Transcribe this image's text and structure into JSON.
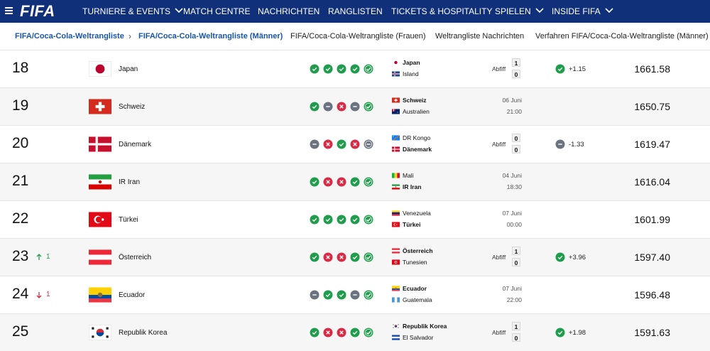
{
  "nav": {
    "logo": "FIFA",
    "items": [
      {
        "label": "TURNIERE & EVENTS",
        "dropdown": true
      },
      {
        "label": "MATCH CENTRE",
        "dropdown": false
      },
      {
        "label": "NACHRICHTEN",
        "dropdown": false
      },
      {
        "label": "RANGLISTEN",
        "dropdown": false
      },
      {
        "label": "TICKETS & HOSPITALITY",
        "dropdown": false
      },
      {
        "label": "SPIELEN",
        "dropdown": true
      },
      {
        "label": "INSIDE FIFA",
        "dropdown": true
      }
    ]
  },
  "breadcrumb": [
    "FIFA/Coca-Cola-Weltrangliste",
    "FIFA/Coca-Cola-Weltrangliste (Männer)"
  ],
  "tabs": [
    "FIFA/Coca-Cola-Weltrangliste (Frauen)",
    "Weltrangliste Nachrichten",
    "Verfahren FIFA/Coca-Cola-Weltrangliste (Männer)"
  ],
  "rows": [
    {
      "rank": "18",
      "team": "Japan",
      "form": [
        "W",
        "W",
        "W",
        "W",
        "W"
      ],
      "match": {
        "home": "Japan",
        "away": "Island",
        "highlight": "home",
        "status": "Abfiff",
        "score": [
          "1",
          "0"
        ]
      },
      "change": "+1.15",
      "points": "1661.58"
    },
    {
      "rank": "19",
      "team": "Schweiz",
      "form": [
        "W",
        "D",
        "L",
        "D",
        "W"
      ],
      "match": {
        "home": "Schweiz",
        "away": "Australien",
        "highlight": "home",
        "date": "06 Juni",
        "time": "21:00"
      },
      "points": "1650.75"
    },
    {
      "rank": "20",
      "team": "Dänemark",
      "form": [
        "D",
        "L",
        "W",
        "L",
        "D"
      ],
      "match": {
        "home": "DR Kongo",
        "away": "Dänemark",
        "highlight": "away",
        "status": "Abfiff",
        "score": [
          "0",
          "0"
        ]
      },
      "change": "-1.33",
      "points": "1619.47"
    },
    {
      "rank": "21",
      "team": "IR Iran",
      "form": [
        "W",
        "L",
        "L",
        "W",
        "W"
      ],
      "match": {
        "home": "Mali",
        "away": "IR Iran",
        "highlight": "away",
        "date": "04 Juni",
        "time": "18:30"
      },
      "points": "1616.04"
    },
    {
      "rank": "22",
      "team": "Türkei",
      "form": [
        "W",
        "W",
        "W",
        "W",
        "W"
      ],
      "match": {
        "home": "Venezuela",
        "away": "Türkei",
        "highlight": "away",
        "date": "07 Juni",
        "time": "00:00"
      },
      "points": "1601.99"
    },
    {
      "rank": "23",
      "movement": {
        "direction": "up",
        "value": "1"
      },
      "team": "Österreich",
      "form": [
        "W",
        "L",
        "L",
        "W",
        "W"
      ],
      "match": {
        "home": "Österreich",
        "away": "Tunesien",
        "highlight": "home",
        "status": "Abfiff",
        "score": [
          "1",
          "0"
        ]
      },
      "change": "+3.96",
      "points": "1597.40"
    },
    {
      "rank": "24",
      "movement": {
        "direction": "down",
        "value": "1"
      },
      "team": "Ecuador",
      "form": [
        "D",
        "W",
        "W",
        "D",
        "W"
      ],
      "match": {
        "home": "Ecuador",
        "away": "Guatemala",
        "highlight": "home",
        "date": "07 Juni",
        "time": "22:00"
      },
      "points": "1596.48"
    },
    {
      "rank": "25",
      "team": "Republik Korea",
      "form": [
        "W",
        "L",
        "L",
        "W",
        "W"
      ],
      "match": {
        "home": "Republik Korea",
        "away": "El Salvador",
        "highlight": "home",
        "status": "Abfiff",
        "score": [
          "1",
          "0"
        ]
      },
      "change": "+1.98",
      "points": "1591.63"
    }
  ]
}
